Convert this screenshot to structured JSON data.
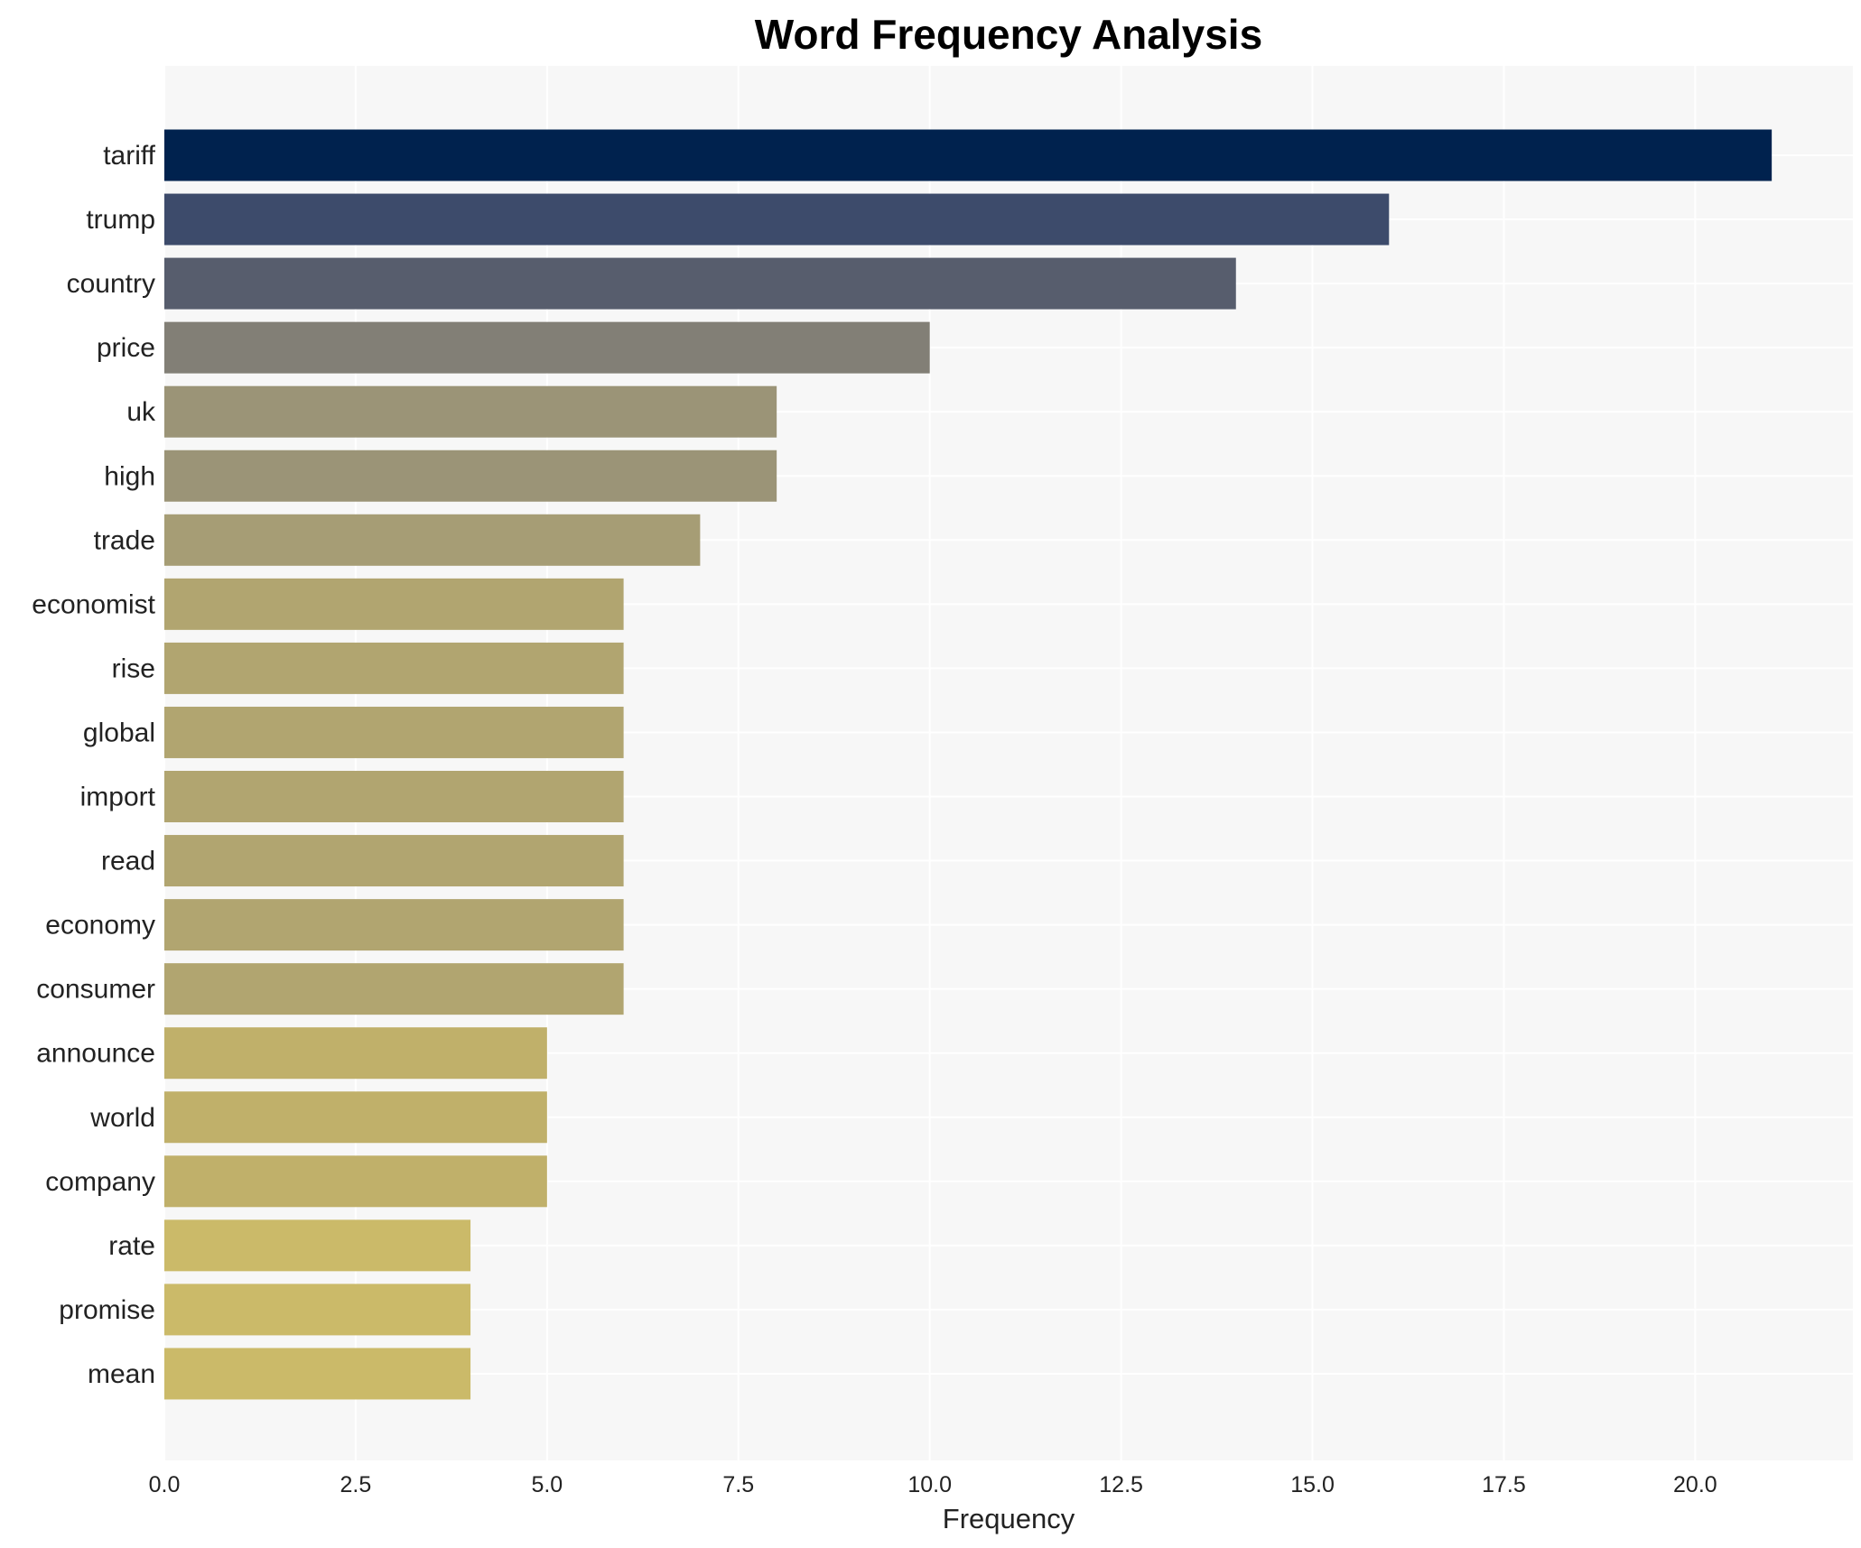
{
  "chart_data": {
    "type": "bar",
    "orientation": "horizontal",
    "title": "Word Frequency Analysis",
    "xlabel": "Frequency",
    "ylabel": "",
    "xlim": [
      0,
      22.06
    ],
    "xticks": [
      "0.0",
      "2.5",
      "5.0",
      "7.5",
      "10.0",
      "12.5",
      "15.0",
      "17.5",
      "20.0"
    ],
    "grid": true,
    "categories": [
      "tariff",
      "trump",
      "country",
      "price",
      "uk",
      "high",
      "trade",
      "economist",
      "rise",
      "global",
      "import",
      "read",
      "economy",
      "consumer",
      "announce",
      "world",
      "company",
      "rate",
      "promise",
      "mean"
    ],
    "values": [
      21,
      16,
      14,
      10,
      8,
      8,
      7,
      6,
      6,
      6,
      6,
      6,
      6,
      6,
      5,
      5,
      5,
      4,
      4,
      4
    ],
    "colors": [
      "#00224e",
      "#3d4b6b",
      "#575d6d",
      "#827f76",
      "#9b9477",
      "#9b9477",
      "#a69d75",
      "#b1a570",
      "#b1a570",
      "#b1a570",
      "#b1a570",
      "#b1a570",
      "#b1a570",
      "#b1a570",
      "#c0b06a",
      "#c0b06a",
      "#c0b06a",
      "#cbba69",
      "#cbba69",
      "#cbba69"
    ]
  }
}
